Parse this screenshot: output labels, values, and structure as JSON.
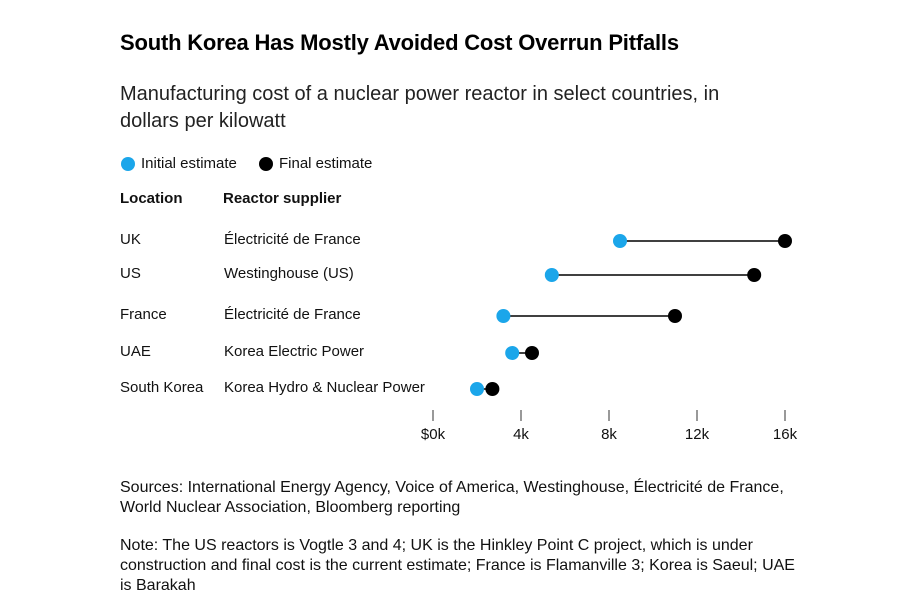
{
  "chart_data": {
    "type": "dumbbell",
    "title": "South Korea Has Mostly Avoided Cost Overrun Pitfalls",
    "subtitle": "Manufacturing cost of a nuclear power reactor in select countries, in dollars per kilowatt",
    "column_headers": [
      "Location",
      "Reactor supplier"
    ],
    "categories": [
      "UK",
      "US",
      "France",
      "UAE",
      "South Korea"
    ],
    "suppliers": [
      "Électricité de France",
      "Westinghouse (US)",
      "Électricité de France",
      "Korea Electric Power",
      "Korea Hydro & Nuclear Power"
    ],
    "series": [
      {
        "name": "Initial estimate",
        "color": "#1ba6ea",
        "values": [
          8500,
          5400,
          3200,
          3600,
          2000
        ]
      },
      {
        "name": "Final estimate",
        "color": "#000000",
        "values": [
          16000,
          14600,
          11000,
          4500,
          2700
        ]
      }
    ],
    "xlim": [
      0,
      16000
    ],
    "xticks": [
      {
        "value": 0,
        "label": "$0k"
      },
      {
        "value": 4000,
        "label": "4k"
      },
      {
        "value": 8000,
        "label": "8k"
      },
      {
        "value": 12000,
        "label": "12k"
      },
      {
        "value": 16000,
        "label": "16k"
      }
    ],
    "sources": "Sources: International Energy Agency, Voice of America, Westinghouse, Électricité de France, World Nuclear Association, Bloomberg reporting",
    "note": "Note: The US reactors is Vogtle 3 and 4; UK is the Hinkley Point C project, which is under construction and final cost is the current estimate; France is Flamanville 3; Korea is Saeul; UAE is Barakah"
  }
}
